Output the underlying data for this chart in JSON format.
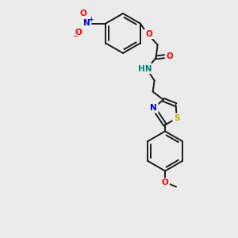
{
  "background_color": "#ebebeb",
  "bond_color": "#1a1a1a",
  "atom_colors": {
    "N": "#0000cc",
    "O": "#ff0000",
    "S": "#cccc00",
    "HN_color": "#008080",
    "C": "#1a1a1a"
  },
  "lw": 1.4,
  "ring_r": 25,
  "thz_r": 16
}
